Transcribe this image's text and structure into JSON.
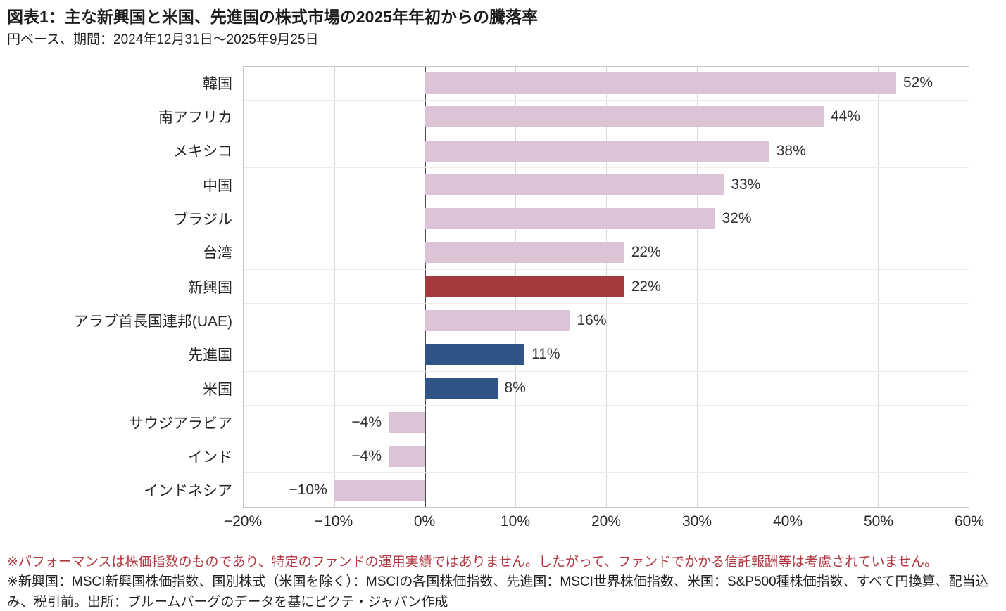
{
  "title": "図表1：主な新興国と米国、先進国の株式市場の2025年年初からの騰落率",
  "subtitle": "円ベース、期間：2024年12月31日～2025年9月25日",
  "footnotes": {
    "performance": "※パフォーマンスは株価指数のものであり、特定のファンドの運用実績ではありません。したがって、ファンドでかかる信託報酬等は考慮されていません。",
    "indices": "※新興国：MSCI新興国株価指数、国別株式（米国を除く）：MSCIの各国株価指数、先進国：MSCI世界株価指数、米国：S&P500種株価指数、すべて円換算、配当込み、税引前。出所：ブルームバーグのデータを基にピクテ・ジャパン作成"
  },
  "colors": {
    "bar_default": "#dbc4d8",
    "bar_emerging": "#a43a3e",
    "bar_developed": "#2e5586",
    "note_red": "#b23740"
  },
  "chart_data": {
    "type": "bar",
    "orientation": "horizontal",
    "title": "図表1：主な新興国と米国、先進国の株式市場の2025年年初からの騰落率",
    "subtitle": "円ベース、期間：2024年12月31日～2025年9月25日",
    "categories": [
      "韓国",
      "南アフリカ",
      "メキシコ",
      "中国",
      "ブラジル",
      "台湾",
      "新興国",
      "アラブ首長国連邦(UAE)",
      "先進国",
      "米国",
      "サウジアラビア",
      "インド",
      "インドネシア"
    ],
    "values": [
      52,
      44,
      38,
      33,
      32,
      22,
      22,
      16,
      11,
      8,
      -4,
      -4,
      -10
    ],
    "value_labels": [
      "52%",
      "44%",
      "38%",
      "33%",
      "32%",
      "22%",
      "22%",
      "16%",
      "11%",
      "8%",
      "−4%",
      "−4%",
      "−10%"
    ],
    "color_keys": [
      "default",
      "default",
      "default",
      "default",
      "default",
      "default",
      "emerging",
      "default",
      "developed",
      "developed",
      "default",
      "default",
      "default"
    ],
    "xlabel": "",
    "ylabel": "",
    "xlim": [
      -20,
      60
    ],
    "x_ticks": [
      -20,
      -10,
      0,
      10,
      20,
      30,
      40,
      50,
      60
    ],
    "x_tick_labels": [
      "−20%",
      "−10%",
      "0%",
      "10%",
      "20%",
      "30%",
      "40%",
      "50%",
      "60%"
    ],
    "grid": true,
    "legend": false
  }
}
